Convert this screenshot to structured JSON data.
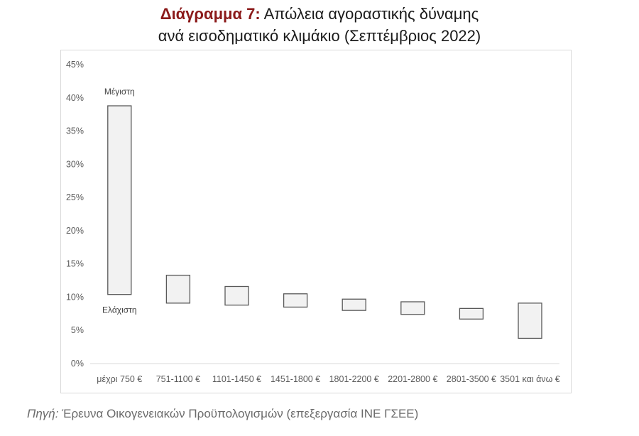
{
  "title": {
    "label": "Διάγραμμα 7:",
    "line1": "Απώλεια αγοραστικής δύναμης",
    "line2": "ανά εισοδηματικό κλιμάκιο (Σεπτέμβριος 2022)"
  },
  "source": {
    "label": "Πηγή:",
    "text": "Έρευνα Οικογενειακών Προϋπολογισμών (επεξεργασία ΙΝΕ ΓΣΕΕ)"
  },
  "colors": {
    "accent": "#8b1a1a",
    "bar_fill": "#f2f2f2",
    "bar_stroke": "#595959"
  },
  "chart_data": {
    "type": "bar",
    "subtype": "floating-range",
    "categories": [
      "μέχρι 750 €",
      "751-1100 €",
      "1101-1450 €",
      "1451-1800 €",
      "1801-2200 €",
      "2201-2800 €",
      "2801-3500 €",
      "3501 και άνω €"
    ],
    "series": [
      {
        "name": "Μέγιστη",
        "values": [
          38.8,
          13.3,
          11.6,
          10.5,
          9.7,
          9.3,
          8.3,
          9.1
        ]
      },
      {
        "name": "Ελάχιστη",
        "values": [
          10.4,
          9.1,
          8.8,
          8.5,
          8.0,
          7.4,
          6.7,
          3.8
        ]
      }
    ],
    "annotations": [
      {
        "text": "Μέγιστη",
        "target": "μέχρι 750 € top"
      },
      {
        "text": "Ελάχιστη",
        "target": "μέχρι 750 € bottom"
      }
    ],
    "yticks": [
      "0%",
      "5%",
      "10%",
      "15%",
      "20%",
      "25%",
      "30%",
      "35%",
      "40%",
      "45%"
    ],
    "ylim": [
      0,
      45
    ],
    "grid": false,
    "legend": "none"
  }
}
